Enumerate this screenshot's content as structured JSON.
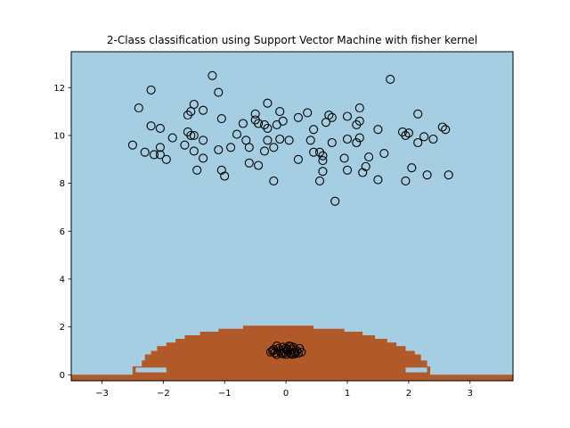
{
  "chart_data": {
    "type": "scatter",
    "title": "2-Class classification using Support Vector Machine with fisher kernel",
    "xlabel": "",
    "ylabel": "",
    "xlim": [
      -3.5,
      3.7
    ],
    "ylim": [
      -0.25,
      13.5
    ],
    "x_ticks": [
      -3,
      -2,
      -1,
      0,
      1,
      2,
      3
    ],
    "x_tick_labels": [
      "−3",
      "−2",
      "−1",
      "0",
      "1",
      "2",
      "3"
    ],
    "y_ticks": [
      0,
      2,
      4,
      6,
      8,
      10,
      12
    ],
    "y_tick_labels": [
      "0",
      "2",
      "4",
      "6",
      "8",
      "10",
      "12"
    ],
    "grid": false,
    "legend": "none",
    "colors": {
      "background_region": "#a6cee3",
      "decision_region": "#b15928",
      "marker_edge": "#000000",
      "marker_face": "none"
    },
    "decision_region": {
      "description_points": [
        [
          -3.5,
          -0.25
        ],
        [
          -3.5,
          0.0
        ],
        [
          -2.5,
          0.0
        ],
        [
          -2.5,
          0.35
        ],
        [
          -2.35,
          0.35
        ],
        [
          -2.35,
          0.6
        ],
        [
          -2.3,
          0.6
        ],
        [
          -2.3,
          0.85
        ],
        [
          -2.2,
          0.85
        ],
        [
          -2.2,
          1.0
        ],
        [
          -2.1,
          1.0
        ],
        [
          -2.1,
          1.2
        ],
        [
          -1.95,
          1.2
        ],
        [
          -1.95,
          1.35
        ],
        [
          -1.8,
          1.35
        ],
        [
          -1.8,
          1.5
        ],
        [
          -1.65,
          1.5
        ],
        [
          -1.65,
          1.65
        ],
        [
          -1.4,
          1.65
        ],
        [
          -1.4,
          1.8
        ],
        [
          -1.1,
          1.8
        ],
        [
          -1.1,
          1.92
        ],
        [
          -0.7,
          1.92
        ],
        [
          -0.7,
          2.05
        ],
        [
          0.45,
          2.05
        ],
        [
          0.45,
          1.92
        ],
        [
          0.95,
          1.92
        ],
        [
          0.95,
          1.8
        ],
        [
          1.25,
          1.8
        ],
        [
          1.25,
          1.65
        ],
        [
          1.45,
          1.65
        ],
        [
          1.45,
          1.5
        ],
        [
          1.65,
          1.5
        ],
        [
          1.65,
          1.35
        ],
        [
          1.8,
          1.35
        ],
        [
          1.8,
          1.2
        ],
        [
          1.95,
          1.2
        ],
        [
          1.95,
          1.0
        ],
        [
          2.1,
          1.0
        ],
        [
          2.1,
          0.85
        ],
        [
          2.2,
          0.85
        ],
        [
          2.2,
          0.6
        ],
        [
          2.3,
          0.6
        ],
        [
          2.3,
          0.35
        ],
        [
          2.35,
          0.35
        ],
        [
          2.35,
          0.0
        ],
        [
          3.7,
          0.0
        ],
        [
          3.7,
          -0.25
        ]
      ],
      "gaps": [
        {
          "x": [
            -2.45,
            -1.95
          ],
          "y": [
            0.1,
            0.3
          ]
        },
        {
          "x": [
            1.95,
            2.3
          ],
          "y": [
            0.1,
            0.3
          ]
        }
      ]
    },
    "series": [
      {
        "values": [
          [
            -2.5,
            9.6
          ],
          [
            -2.4,
            11.15
          ],
          [
            -2.3,
            9.3
          ],
          [
            -2.2,
            11.9
          ],
          [
            -2.2,
            10.4
          ],
          [
            -2.15,
            9.2
          ],
          [
            -2.05,
            10.3
          ],
          [
            -2.05,
            9.5
          ],
          [
            -2.05,
            9.2
          ],
          [
            -1.95,
            9.0
          ],
          [
            -1.85,
            9.9
          ],
          [
            -1.65,
            9.6
          ],
          [
            -1.6,
            10.15
          ],
          [
            -1.6,
            10.85
          ],
          [
            -1.55,
            11.0
          ],
          [
            -1.5,
            11.3
          ],
          [
            -1.5,
            10.0
          ],
          [
            -1.55,
            10.0
          ],
          [
            -1.5,
            9.35
          ],
          [
            -1.45,
            8.55
          ],
          [
            -1.35,
            9.8
          ],
          [
            -1.35,
            9.05
          ],
          [
            -1.35,
            11.05
          ],
          [
            -1.2,
            12.5
          ],
          [
            -1.1,
            11.8
          ],
          [
            -1.1,
            9.4
          ],
          [
            -1.05,
            10.7
          ],
          [
            -1.05,
            8.55
          ],
          [
            -1.0,
            8.3
          ],
          [
            -0.9,
            9.5
          ],
          [
            -0.8,
            10.05
          ],
          [
            -0.7,
            10.5
          ],
          [
            -0.65,
            9.8
          ],
          [
            -0.6,
            9.5
          ],
          [
            -0.6,
            8.85
          ],
          [
            -0.5,
            10.9
          ],
          [
            -0.5,
            10.65
          ],
          [
            -0.45,
            10.5
          ],
          [
            -0.45,
            8.75
          ],
          [
            -0.35,
            10.45
          ],
          [
            -0.35,
            9.35
          ],
          [
            -0.3,
            11.35
          ],
          [
            -0.3,
            10.3
          ],
          [
            -0.3,
            9.8
          ],
          [
            -0.2,
            9.5
          ],
          [
            -0.2,
            8.1
          ],
          [
            -0.15,
            10.45
          ],
          [
            -0.1,
            11.0
          ],
          [
            -0.1,
            9.85
          ],
          [
            -0.05,
            10.6
          ],
          [
            0.05,
            9.8
          ],
          [
            0.2,
            10.75
          ],
          [
            0.2,
            9.0
          ],
          [
            0.35,
            10.95
          ],
          [
            0.4,
            9.8
          ],
          [
            0.45,
            10.25
          ],
          [
            0.45,
            9.3
          ],
          [
            0.55,
            9.3
          ],
          [
            0.55,
            8.1
          ],
          [
            0.6,
            8.95
          ],
          [
            0.6,
            8.5
          ],
          [
            0.6,
            9.15
          ],
          [
            0.65,
            10.55
          ],
          [
            0.7,
            10.85
          ],
          [
            0.75,
            10.75
          ],
          [
            0.75,
            9.7
          ],
          [
            0.8,
            7.25
          ],
          [
            0.95,
            9.05
          ],
          [
            1.0,
            10.8
          ],
          [
            1.0,
            9.85
          ],
          [
            1.0,
            8.55
          ],
          [
            1.15,
            10.45
          ],
          [
            1.15,
            9.7
          ],
          [
            1.2,
            10.6
          ],
          [
            1.2,
            9.9
          ],
          [
            1.2,
            11.15
          ],
          [
            1.25,
            8.45
          ],
          [
            1.3,
            8.7
          ],
          [
            1.35,
            9.1
          ],
          [
            1.5,
            10.25
          ],
          [
            1.5,
            8.15
          ],
          [
            1.6,
            9.25
          ],
          [
            1.7,
            12.35
          ],
          [
            1.9,
            10.15
          ],
          [
            1.95,
            10.0
          ],
          [
            1.95,
            8.1
          ],
          [
            2.0,
            10.1
          ],
          [
            2.05,
            8.65
          ],
          [
            2.15,
            10.9
          ],
          [
            2.15,
            9.7
          ],
          [
            2.25,
            9.95
          ],
          [
            2.3,
            8.35
          ],
          [
            2.4,
            9.85
          ],
          [
            2.55,
            10.35
          ],
          [
            2.6,
            10.25
          ],
          [
            2.65,
            8.35
          ]
        ]
      },
      {
        "values": [
          [
            -0.25,
            0.95
          ],
          [
            -0.2,
            1.05
          ],
          [
            -0.15,
            0.85
          ],
          [
            -0.15,
            1.2
          ],
          [
            -0.1,
            1.0
          ],
          [
            -0.08,
            0.9
          ],
          [
            -0.05,
            1.15
          ],
          [
            -0.02,
            0.95
          ],
          [
            0.0,
            1.1
          ],
          [
            0.0,
            0.85
          ],
          [
            0.03,
            1.0
          ],
          [
            0.05,
            1.2
          ],
          [
            0.07,
            0.9
          ],
          [
            0.1,
            1.05
          ],
          [
            0.1,
            0.85
          ],
          [
            0.12,
            1.15
          ],
          [
            0.15,
            0.95
          ],
          [
            0.18,
            1.0
          ],
          [
            0.2,
            0.9
          ],
          [
            0.22,
            1.1
          ],
          [
            -0.12,
            1.1
          ],
          [
            0.08,
            1.18
          ],
          [
            -0.18,
            0.92
          ],
          [
            0.14,
            0.88
          ],
          [
            0.25,
            0.95
          ],
          [
            -0.05,
            0.88
          ],
          [
            0.02,
            1.05
          ],
          [
            -0.22,
            1.0
          ]
        ]
      }
    ]
  }
}
